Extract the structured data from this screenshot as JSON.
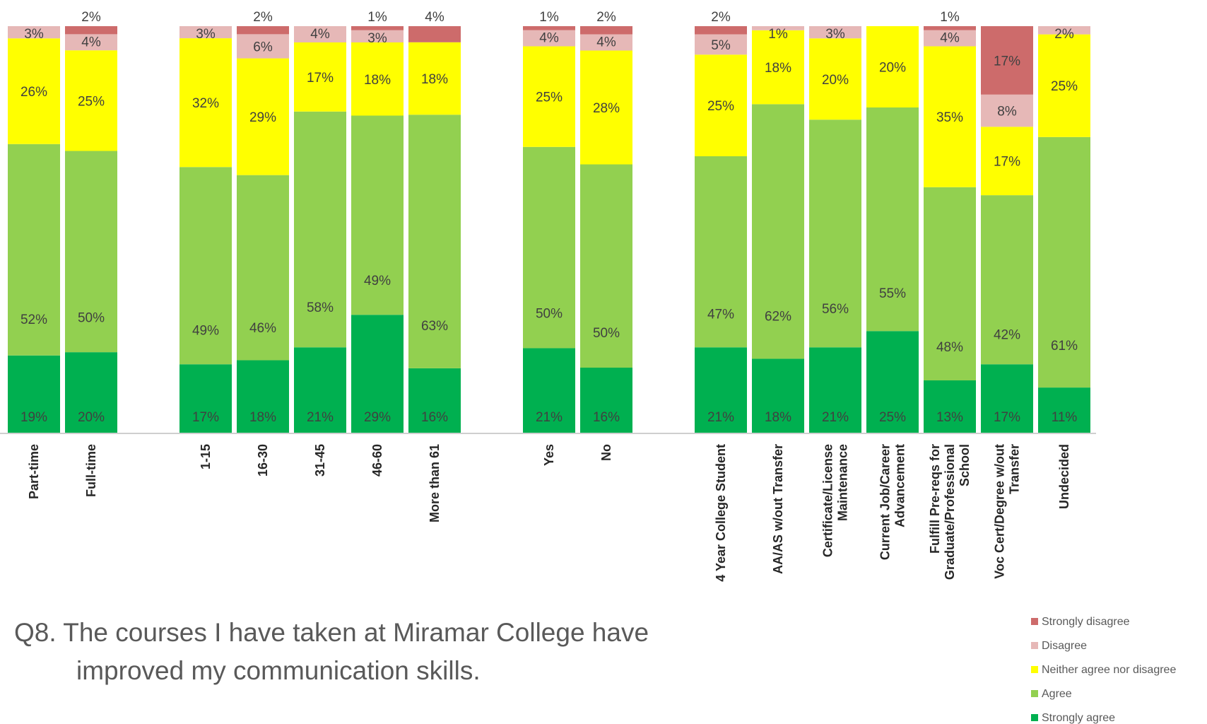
{
  "caption": {
    "line1": "Q8. The courses I have taken at Miramar College have",
    "line2": "improved my communication skills."
  },
  "chart_data": {
    "type": "bar",
    "stacked": true,
    "ylim": [
      0,
      100
    ],
    "grid": false,
    "legend_position": "bottom-right",
    "groups": [
      [
        "Part-time",
        "Full-time"
      ],
      [
        "1-15",
        "16-30",
        "31-45",
        "46-60",
        "More than 61"
      ],
      [
        "Yes",
        "No"
      ],
      [
        "4 Year College Student",
        "AA/AS w/out Transfer",
        "Certificate/License Maintenance",
        "Current Job/Career Advancement",
        "Fulfill Pre-reqs for Graduate/Professional School",
        "Voc Cert/Degree w/out Transfer",
        "Undecided"
      ]
    ],
    "categories": [
      "Part-time",
      "Full-time",
      "1-15",
      "16-30",
      "31-45",
      "46-60",
      "More than 61",
      "Yes",
      "No",
      "4 Year College Student",
      "AA/AS w/out Transfer",
      "Certificate/License Maintenance",
      "Current Job/Career Advancement",
      "Fulfill Pre-reqs for Graduate/Professional School",
      "Voc Cert/Degree w/out Transfer",
      "Undecided"
    ],
    "series": [
      {
        "name": "Strongly agree",
        "color": "#00b050",
        "values": [
          19,
          20,
          17,
          18,
          21,
          29,
          16,
          21,
          16,
          21,
          18,
          21,
          25,
          13,
          17,
          11
        ]
      },
      {
        "name": "Agree",
        "color": "#92d050",
        "values": [
          52,
          50,
          49,
          46,
          58,
          49,
          63,
          50,
          50,
          47,
          62,
          56,
          55,
          48,
          42,
          61
        ]
      },
      {
        "name": "Neither agree nor disagree",
        "color": "#ffff00",
        "values": [
          26,
          25,
          32,
          29,
          17,
          18,
          18,
          25,
          28,
          25,
          18,
          20,
          20,
          35,
          17,
          25
        ]
      },
      {
        "name": "Disagree",
        "color": "#e6b8b7",
        "values": [
          3,
          4,
          3,
          6,
          4,
          3,
          0,
          4,
          4,
          5,
          1,
          3,
          0,
          4,
          8,
          2
        ]
      },
      {
        "name": "Strongly disagree",
        "color": "#cd6b6b",
        "values": [
          0,
          2,
          0,
          2,
          0,
          1,
          4,
          1,
          2,
          2,
          0,
          0,
          0,
          1,
          17,
          0
        ]
      }
    ],
    "bar_labels": [
      [
        "19%",
        "52%",
        "26%",
        "3%",
        ""
      ],
      [
        "20%",
        "50%",
        "25%",
        "4%",
        "2%"
      ],
      [
        "17%",
        "49%",
        "32%",
        "3%",
        ""
      ],
      [
        "18%",
        "46%",
        "29%",
        "6%",
        "2%"
      ],
      [
        "21%",
        "58%",
        "17%",
        "4%",
        ""
      ],
      [
        "29%",
        "49%",
        "18%",
        "3%",
        "1%"
      ],
      [
        "16%",
        "63%",
        "18%",
        "",
        "4%"
      ],
      [
        "21%",
        "50%",
        "25%",
        "4%",
        "1%"
      ],
      [
        "16%",
        "50%",
        "28%",
        "4%",
        "2%"
      ],
      [
        "21%",
        "47%",
        "25%",
        "5%",
        "2%"
      ],
      [
        "18%",
        "62%",
        "18%",
        "1%",
        ""
      ],
      [
        "21%",
        "56%",
        "20%",
        "3%",
        ""
      ],
      [
        "25%",
        "55%",
        "20%",
        "",
        ""
      ],
      [
        "13%",
        "48%",
        "35%",
        "4%",
        "1%"
      ],
      [
        "17%",
        "42%",
        "17%",
        "8%",
        "17%"
      ],
      [
        "11%",
        "61%",
        "25%",
        "2%",
        ""
      ]
    ],
    "category_label_lines": [
      [
        "Part-time"
      ],
      [
        "Full-time"
      ],
      [
        "1-15"
      ],
      [
        "16-30"
      ],
      [
        "31-45"
      ],
      [
        "46-60"
      ],
      [
        "More than 61"
      ],
      [
        "Yes"
      ],
      [
        "No"
      ],
      [
        "4 Year College Student"
      ],
      [
        "AA/AS w/out Transfer"
      ],
      [
        "Certificate/License",
        "Maintenance"
      ],
      [
        "Current Job/Career",
        "Advancement"
      ],
      [
        "Fulfill Pre-reqs for",
        "Graduate/Professional",
        "School"
      ],
      [
        "Voc Cert/Degree w/out",
        "Transfer"
      ],
      [
        "Undecided"
      ]
    ],
    "legend_order": [
      "Strongly disagree",
      "Disagree",
      "Neither agree nor disagree",
      "Agree",
      "Strongly agree"
    ]
  }
}
